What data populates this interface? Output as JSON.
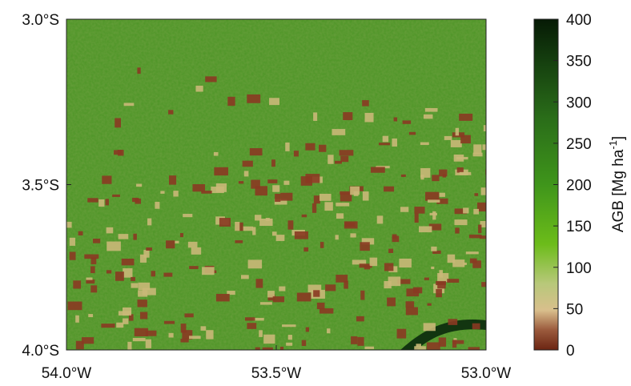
{
  "map": {
    "xlim": [
      -54.0,
      -53.0
    ],
    "ylim": [
      -4.0,
      -3.0
    ],
    "xticks": [
      {
        "value": -54.0,
        "label": "54.0°W"
      },
      {
        "value": -53.5,
        "label": "53.5°W"
      },
      {
        "value": -53.0,
        "label": "53.0°W"
      }
    ],
    "yticks": [
      {
        "value": -3.0,
        "label": "3.0°S"
      },
      {
        "value": -3.5,
        "label": "3.5°S"
      },
      {
        "value": -4.0,
        "label": "4.0°S"
      }
    ]
  },
  "colorbar": {
    "lim": [
      0,
      400
    ],
    "ticks": [
      0,
      50,
      100,
      150,
      200,
      250,
      300,
      350,
      400
    ],
    "label": {
      "text": "AGB  [Mg ha",
      "sup": "-1",
      "end": "]"
    }
  }
}
